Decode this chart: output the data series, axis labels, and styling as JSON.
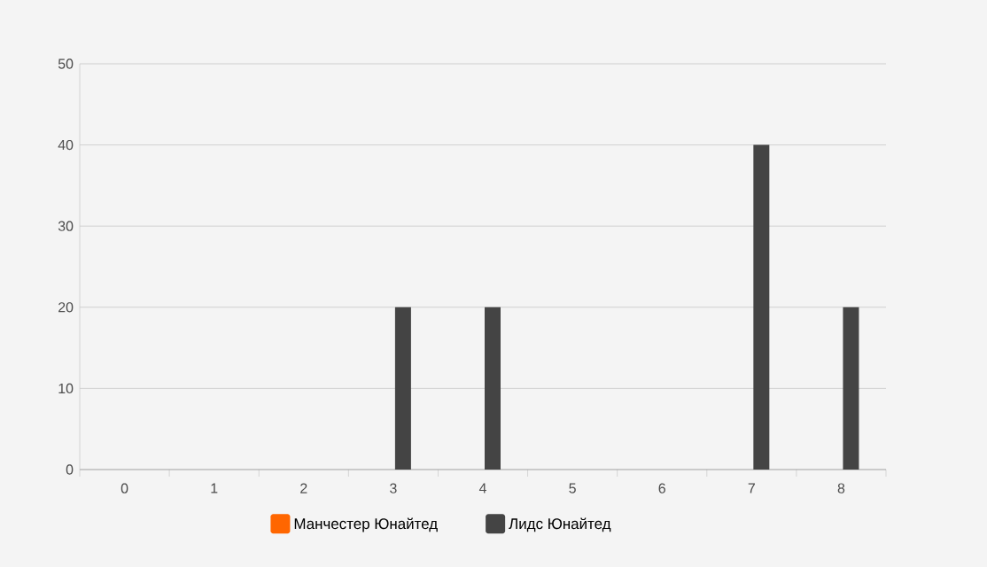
{
  "chart_data": {
    "type": "bar",
    "categories": [
      "0",
      "1",
      "2",
      "3",
      "4",
      "5",
      "6",
      "7",
      "8"
    ],
    "series": [
      {
        "name": "Манчестер Юнайтед",
        "color": "#ff6600",
        "values": [
          0,
          0,
          0,
          0,
          0,
          0,
          0,
          0,
          0
        ]
      },
      {
        "name": "Лидс Юнайтед",
        "color": "#444444",
        "values": [
          0,
          0,
          0,
          20,
          20,
          0,
          0,
          40,
          20
        ]
      }
    ],
    "ylim": [
      0,
      50
    ],
    "yticks": [
      0,
      10,
      20,
      30,
      40,
      50
    ],
    "grid": "y",
    "legend": "bottom"
  }
}
